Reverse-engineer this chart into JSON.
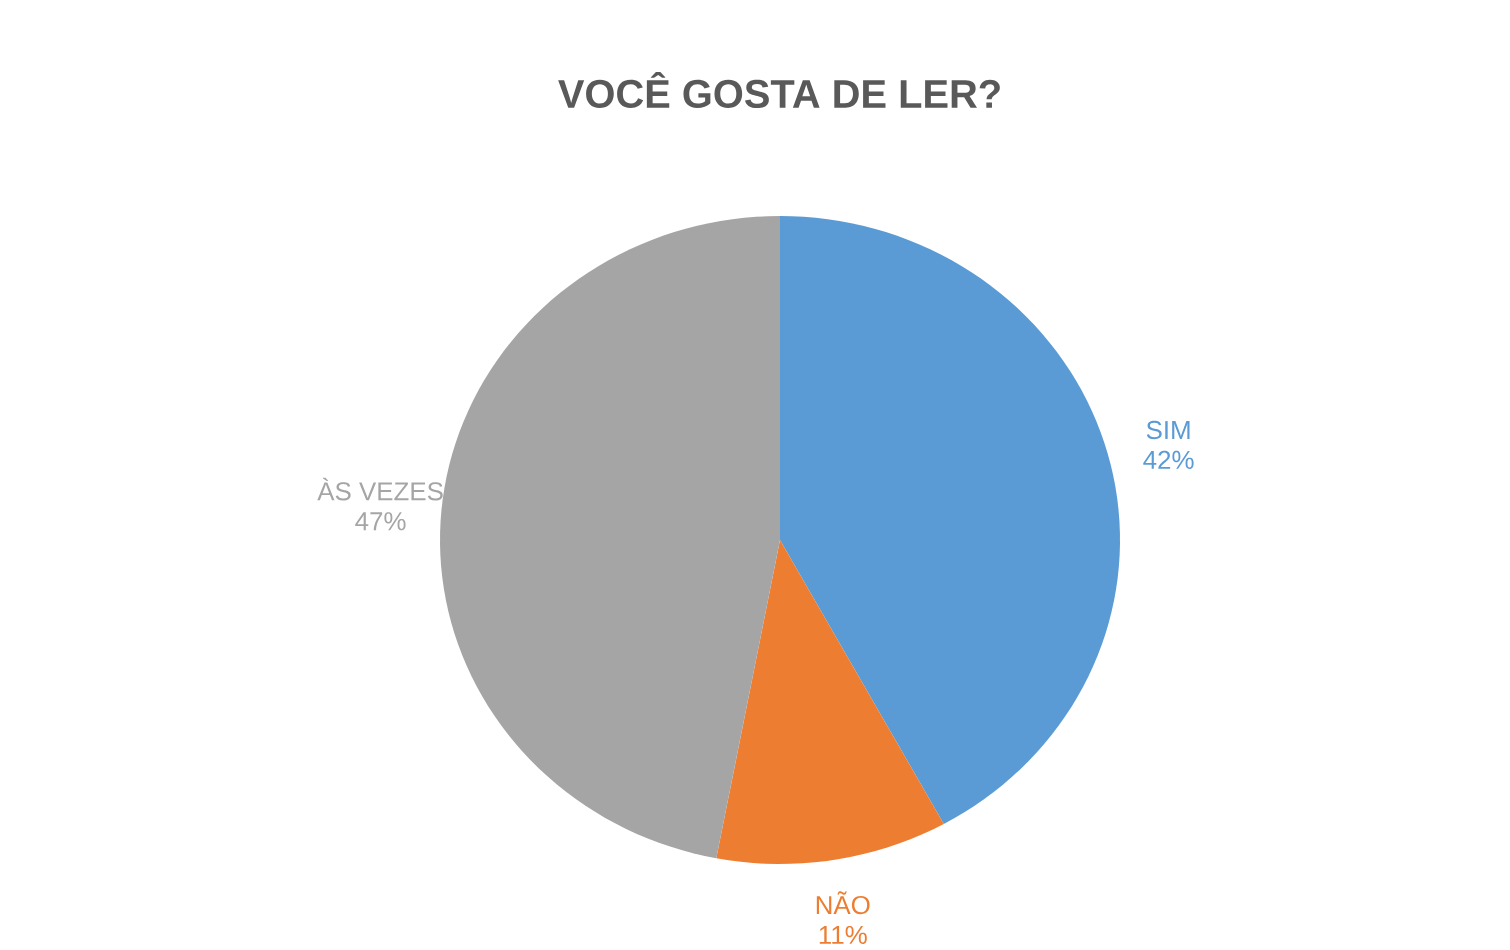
{
  "chart_data": {
    "type": "pie",
    "title": "VOCÊ GOSTA DE LER?",
    "categories": [
      "SIM",
      "NÃO",
      "ÀS VEZES"
    ],
    "values": [
      42,
      11,
      47
    ],
    "value_labels": [
      "42%",
      "11%",
      "47%"
    ],
    "colors": [
      "#5b9bd5",
      "#ed7d31",
      "#a5a5a5"
    ]
  }
}
